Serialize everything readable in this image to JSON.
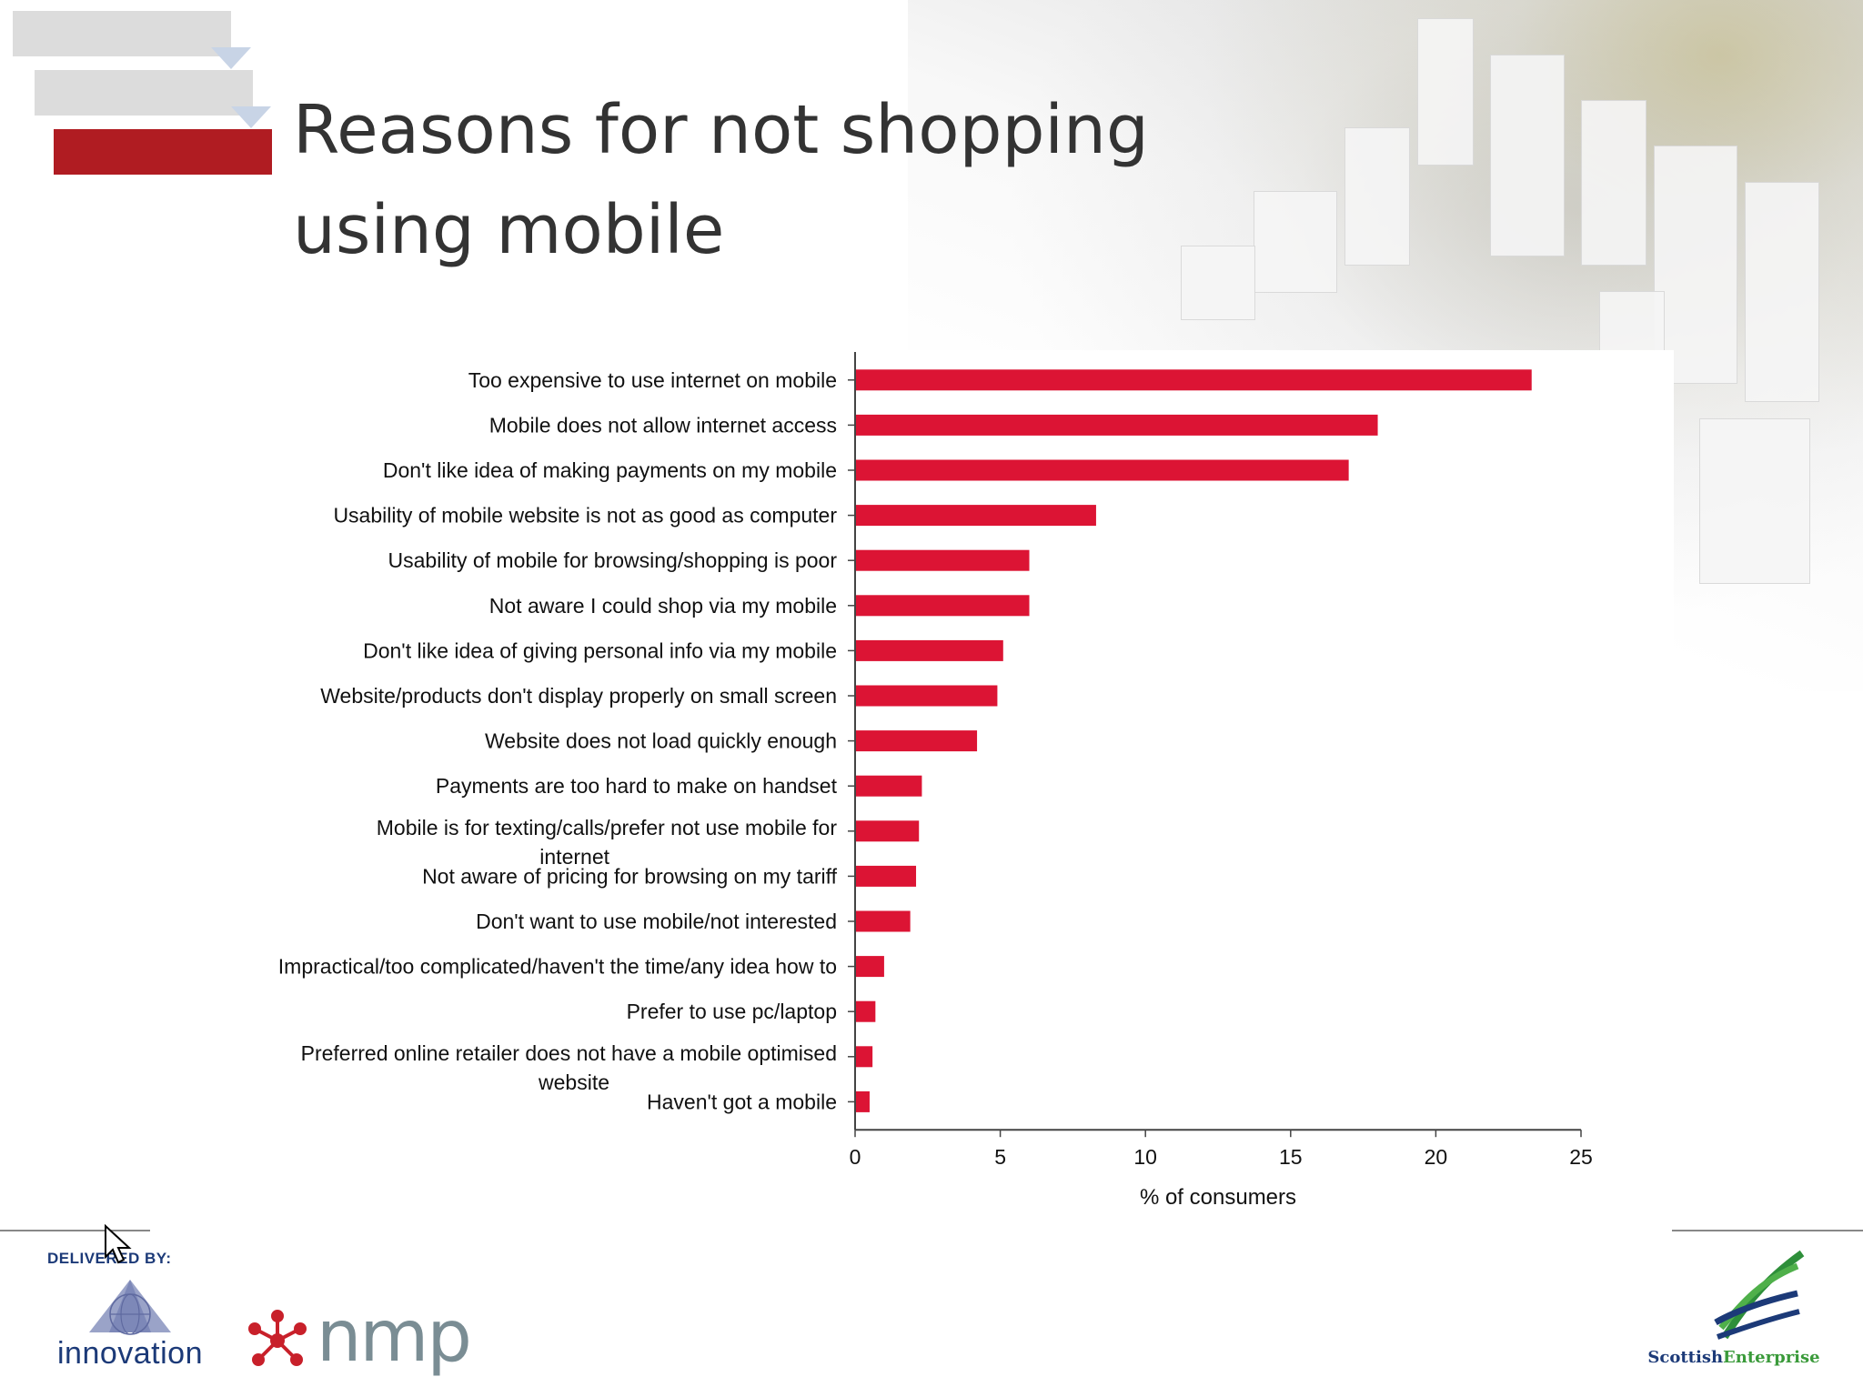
{
  "slide": {
    "title_line1": "Reasons for not shopping",
    "title_line2": "using mobile",
    "delivered_by": "DELIVERED BY:",
    "logo_innovation": "innovation",
    "logo_nmp": "nmp",
    "logo_se_part1": "Scottish",
    "logo_se_part2": "Enterprise"
  },
  "colors": {
    "bar": "#dc1434",
    "accent_red": "#b01c22",
    "axis": "#444444"
  },
  "chart_data": {
    "type": "bar",
    "orientation": "horizontal",
    "title": "",
    "xlabel": "% of consumers",
    "ylabel": "",
    "xlim": [
      0,
      25
    ],
    "xticks": [
      0,
      5,
      10,
      15,
      20,
      25
    ],
    "grid": false,
    "categories": [
      "Too expensive to use internet on mobile",
      "Mobile does not allow internet access",
      "Don't like idea of making payments on my mobile",
      "Usability of mobile website is not as good as computer",
      "Usability of mobile for browsing/shopping is poor",
      "Not aware I could shop via my mobile",
      "Don't like idea of giving personal info via my mobile",
      "Website/products don't display properly on small screen",
      "Website does not load quickly enough",
      "Payments are too hard to make on handset",
      "Mobile is for texting/calls/prefer not use mobile for internet",
      "Not aware of pricing for browsing on my tariff",
      "Don't want to use mobile/not interested",
      "Impractical/too complicated/haven't the time/any idea how to",
      "Prefer to use pc/laptop",
      "Preferred online retailer does not have a mobile optimised website",
      "Haven't got a mobile"
    ],
    "values": [
      23.3,
      18.0,
      17.0,
      8.3,
      6.0,
      6.0,
      5.1,
      4.9,
      4.2,
      2.3,
      2.2,
      2.1,
      1.9,
      1.0,
      0.7,
      0.6,
      0.5
    ]
  }
}
